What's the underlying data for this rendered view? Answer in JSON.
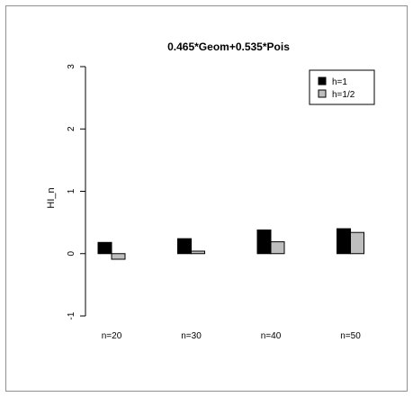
{
  "chart_data": {
    "type": "bar",
    "title": "0.465*Geom+0.535*Pois",
    "xlabel": "",
    "ylabel": "HI_n",
    "categories": [
      "n=20",
      "n=30",
      "n=40",
      "n=50"
    ],
    "series": [
      {
        "name": "h=1",
        "values": [
          0.18,
          0.24,
          0.38,
          0.4
        ],
        "color": "#000000"
      },
      {
        "name": "h=1/2",
        "values": [
          -0.09,
          0.04,
          0.19,
          0.34
        ],
        "color": "#bebebe"
      }
    ],
    "ylim": [
      -1,
      3
    ],
    "yticks": [
      -1,
      0,
      1,
      2,
      3
    ],
    "grid": false,
    "legend_position": "top-right"
  }
}
